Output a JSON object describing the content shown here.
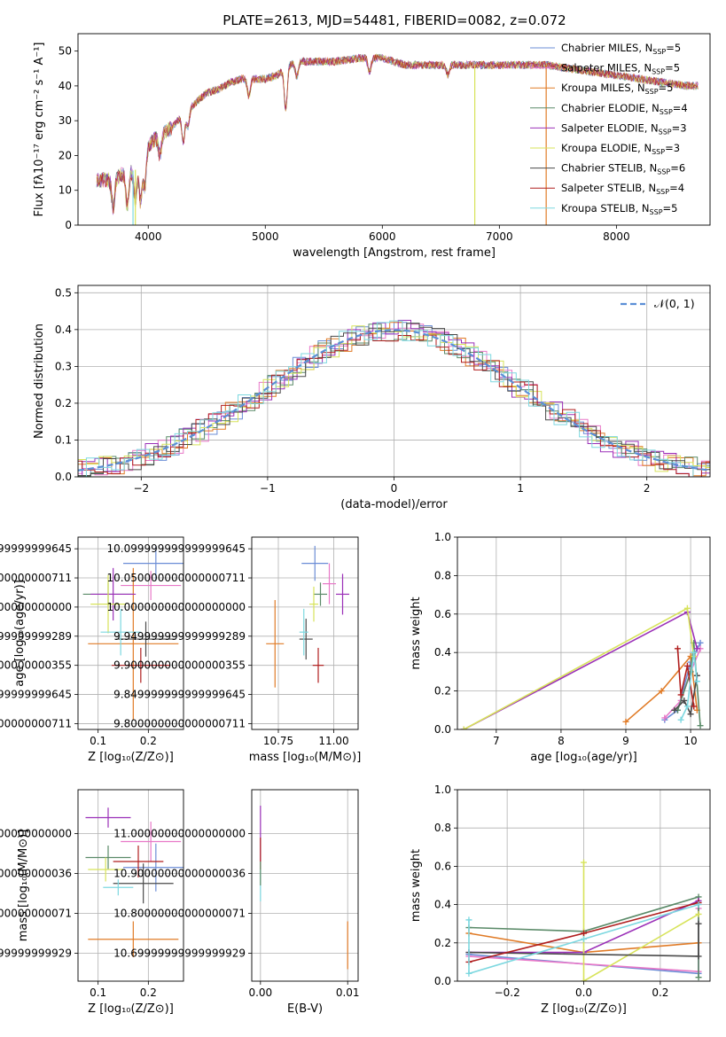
{
  "figure_title": "PLATE=2613, MJD=54481, FIBERID=0082, z=0.072",
  "colors": {
    "c1": "#6b8dd6",
    "c2": "#e878c8",
    "c3": "#e07b27",
    "c4": "#5a8a68",
    "c5": "#9b30b8",
    "c6": "#d7e35a",
    "c7": "#4a4a4a",
    "c8": "#b01e1e",
    "c9": "#7dd8e0"
  },
  "legend_series": [
    {
      "pre": "Chabrier MILES, N",
      "sub": "SSP",
      "post": "=5",
      "color": "#6b8dd6"
    },
    {
      "pre": "Salpeter MILES, N",
      "sub": "SSP",
      "post": "=5",
      "color": "#e878c8"
    },
    {
      "pre": "Kroupa MILES, N",
      "sub": "SSP",
      "post": "=5",
      "color": "#e07b27"
    },
    {
      "pre": "Chabrier ELODIE, N",
      "sub": "SSP",
      "post": "=4",
      "color": "#5a8a68"
    },
    {
      "pre": "Salpeter ELODIE, N",
      "sub": "SSP",
      "post": "=3",
      "color": "#9b30b8"
    },
    {
      "pre": "Kroupa ELODIE, N",
      "sub": "SSP",
      "post": "=3",
      "color": "#d7e35a"
    },
    {
      "pre": "Chabrier STELIB, N",
      "sub": "SSP",
      "post": "=6",
      "color": "#4a4a4a"
    },
    {
      "pre": "Salpeter STELIB, N",
      "sub": "SSP",
      "post": "=4",
      "color": "#b01e1e"
    },
    {
      "pre": "Kroupa STELIB, N",
      "sub": "SSP",
      "post": "=5",
      "color": "#7dd8e0"
    }
  ],
  "chart_data": [
    {
      "id": "spectrum",
      "type": "line",
      "xlabel": "wavelength [Angstrom, rest frame]",
      "ylabel": "Flux [fλ10⁻¹⁷ erg cm⁻² s⁻¹ A⁻¹]",
      "xlim": [
        3400,
        8800
      ],
      "ylim": [
        0,
        55
      ],
      "xticks": [
        4000,
        5000,
        6000,
        7000,
        8000
      ],
      "yticks": [
        0,
        10,
        20,
        30,
        40,
        50
      ],
      "grid": false,
      "legend": "top-right",
      "continuum": [
        [
          3560,
          13
        ],
        [
          3700,
          13
        ],
        [
          3800,
          15
        ],
        [
          3900,
          16
        ],
        [
          3950,
          20
        ],
        [
          4000,
          23
        ],
        [
          4100,
          26
        ],
        [
          4200,
          28
        ],
        [
          4300,
          32
        ],
        [
          4400,
          35
        ],
        [
          4500,
          38
        ],
        [
          4600,
          39
        ],
        [
          4700,
          41
        ],
        [
          4800,
          42
        ],
        [
          4900,
          42
        ],
        [
          5000,
          42
        ],
        [
          5100,
          43
        ],
        [
          5200,
          46
        ],
        [
          5300,
          47
        ],
        [
          5400,
          47
        ],
        [
          5600,
          47
        ],
        [
          5800,
          48
        ],
        [
          5900,
          48
        ],
        [
          6000,
          48
        ],
        [
          6200,
          46
        ],
        [
          6400,
          46
        ],
        [
          6600,
          46
        ],
        [
          6800,
          46
        ],
        [
          7000,
          46
        ],
        [
          7200,
          46
        ],
        [
          7400,
          46
        ],
        [
          7600,
          45
        ],
        [
          7800,
          44
        ],
        [
          8000,
          43
        ],
        [
          8200,
          42
        ],
        [
          8400,
          41
        ],
        [
          8600,
          40
        ],
        [
          8700,
          40
        ]
      ],
      "absorption": [
        [
          3700,
          8
        ],
        [
          3820,
          10
        ],
        [
          3890,
          9
        ],
        [
          3935,
          12
        ],
        [
          3970,
          10
        ],
        [
          4100,
          6
        ],
        [
          4300,
          8
        ],
        [
          4340,
          5
        ],
        [
          4860,
          5
        ],
        [
          5175,
          12
        ],
        [
          5270,
          4
        ],
        [
          5890,
          4
        ],
        [
          6560,
          3
        ]
      ],
      "dips": [
        [
          3870,
          0,
          "#7dd8e0"
        ],
        [
          3890,
          0,
          "#d7e35a"
        ],
        [
          6790,
          0,
          "#d7e35a"
        ],
        [
          7400,
          0,
          "#e07b27"
        ]
      ]
    },
    {
      "id": "residuals",
      "type": "line",
      "xlabel": "(data-model)/error",
      "ylabel": "Normed distribution",
      "xlim": [
        -2.5,
        2.5
      ],
      "ylim": [
        0,
        0.52
      ],
      "xticks": [
        -2,
        -1,
        0,
        1,
        2
      ],
      "yticks": [
        0.0,
        0.1,
        0.2,
        0.3,
        0.4,
        0.5
      ],
      "grid": true,
      "legend": "top-right",
      "gauss_label": "𝒩(0, 1)"
    },
    {
      "id": "age_vs_Z",
      "type": "scatter",
      "xlabel": "Z [log₁₀(Z/Z⊙)]",
      "ylabel": "age  [log₁₀(age/yr)]",
      "xlim": [
        0.06,
        0.27
      ],
      "ylim": [
        9.79,
        10.12
      ],
      "xticks": [
        0.1,
        0.2
      ],
      "yticks": [
        9.8,
        9.85,
        9.9,
        9.95,
        10.0,
        10.05,
        10.1
      ],
      "grid": true,
      "points": [
        {
          "x": 0.215,
          "y": 10.075,
          "xe": 0.065,
          "ye": 0.03,
          "c": "c1"
        },
        {
          "x": 0.205,
          "y": 10.037,
          "xe": 0.06,
          "ye": 0.025,
          "c": "c2"
        },
        {
          "x": 0.17,
          "y": 9.937,
          "xe": 0.09,
          "ye": 0.13,
          "c": "c3"
        },
        {
          "x": 0.12,
          "y": 10.022,
          "xe": 0.05,
          "ye": 0.02,
          "c": "c4"
        },
        {
          "x": 0.13,
          "y": 10.022,
          "xe": 0.045,
          "ye": 0.045,
          "c": "c5"
        },
        {
          "x": 0.12,
          "y": 10.005,
          "xe": 0.035,
          "ye": 0.05,
          "c": "c6"
        },
        {
          "x": 0.195,
          "y": 9.945,
          "xe": 0.06,
          "ye": 0.03,
          "c": "c7"
        },
        {
          "x": 0.185,
          "y": 9.9,
          "xe": 0.058,
          "ye": 0.03,
          "c": "c8"
        },
        {
          "x": 0.145,
          "y": 9.957,
          "xe": 0.04,
          "ye": 0.04,
          "c": "c9"
        }
      ]
    },
    {
      "id": "age_vs_mass",
      "type": "scatter",
      "xlabel": "mass [log₁₀(M/M⊙)]",
      "ylabel": "",
      "xlim": [
        10.63,
        11.11
      ],
      "ylim": [
        9.79,
        10.12
      ],
      "xticks": [
        10.75,
        11.0
      ],
      "yticks": [
        9.8,
        9.85,
        9.9,
        9.95,
        10.0,
        10.05,
        10.1
      ],
      "grid": true,
      "points": [
        {
          "x": 10.915,
          "y": 10.075,
          "xe": 0.06,
          "ye": 0.03,
          "c": "c1"
        },
        {
          "x": 10.98,
          "y": 10.04,
          "xe": 0.03,
          "ye": 0.035,
          "c": "c2"
        },
        {
          "x": 10.735,
          "y": 9.937,
          "xe": 0.04,
          "ye": 0.075,
          "c": "c3"
        },
        {
          "x": 10.94,
          "y": 10.022,
          "xe": 0.03,
          "ye": 0.02,
          "c": "c4"
        },
        {
          "x": 11.04,
          "y": 10.022,
          "xe": 0.03,
          "ye": 0.035,
          "c": "c5"
        },
        {
          "x": 10.91,
          "y": 10.005,
          "xe": 0.02,
          "ye": 0.03,
          "c": "c6"
        },
        {
          "x": 10.875,
          "y": 9.945,
          "xe": 0.03,
          "ye": 0.035,
          "c": "c7"
        },
        {
          "x": 10.93,
          "y": 9.9,
          "xe": 0.025,
          "ye": 0.03,
          "c": "c8"
        },
        {
          "x": 10.865,
          "y": 9.957,
          "xe": 0.02,
          "ye": 0.04,
          "c": "c9"
        }
      ]
    },
    {
      "id": "massweight_vs_age",
      "type": "line",
      "xlabel": "age  [log₁₀(age/yr)]",
      "ylabel": "mass weight",
      "xlim": [
        6.4,
        10.3
      ],
      "ylim": [
        0,
        1.0
      ],
      "xticks": [
        7,
        8,
        9,
        10
      ],
      "yticks": [
        0.0,
        0.2,
        0.4,
        0.6,
        0.8,
        1.0
      ],
      "grid": true,
      "series": [
        {
          "c": "c1",
          "pts": [
            [
              9.6,
              0.05
            ],
            [
              9.8,
              0.1
            ],
            [
              10.0,
              0.35
            ],
            [
              10.15,
              0.45
            ]
          ]
        },
        {
          "c": "c2",
          "pts": [
            [
              9.6,
              0.06
            ],
            [
              9.85,
              0.15
            ],
            [
              10.0,
              0.3
            ],
            [
              10.15,
              0.42
            ]
          ]
        },
        {
          "c": "c3",
          "pts": [
            [
              9.0,
              0.04
            ],
            [
              9.55,
              0.2
            ],
            [
              10.0,
              0.38
            ],
            [
              10.1,
              0.1
            ]
          ]
        },
        {
          "c": "c4",
          "pts": [
            [
              9.8,
              0.1
            ],
            [
              10.0,
              0.3
            ],
            [
              10.05,
              0.45
            ],
            [
              10.15,
              0.02
            ]
          ]
        },
        {
          "c": "c5",
          "pts": [
            [
              6.5,
              0.0
            ],
            [
              9.95,
              0.61
            ],
            [
              10.1,
              0.42
            ]
          ]
        },
        {
          "c": "c6",
          "pts": [
            [
              6.5,
              0.0
            ],
            [
              9.95,
              0.63
            ],
            [
              10.05,
              0.38
            ]
          ]
        },
        {
          "c": "c7",
          "pts": [
            [
              9.75,
              0.1
            ],
            [
              9.9,
              0.15
            ],
            [
              10.0,
              0.08
            ],
            [
              10.1,
              0.28
            ]
          ]
        },
        {
          "c": "c8",
          "pts": [
            [
              9.8,
              0.42
            ],
            [
              9.85,
              0.18
            ],
            [
              9.95,
              0.33
            ],
            [
              10.05,
              0.12
            ]
          ]
        },
        {
          "c": "c9",
          "pts": [
            [
              9.85,
              0.05
            ],
            [
              9.95,
              0.12
            ],
            [
              10.05,
              0.4
            ],
            [
              10.1,
              0.25
            ]
          ]
        }
      ]
    },
    {
      "id": "mass_vs_Z",
      "type": "scatter",
      "xlabel": "Z [log₁₀(Z/Z⊙)]",
      "ylabel": "mass [log₁₀(M/M⊙)]",
      "xlim": [
        0.06,
        0.27
      ],
      "ylim": [
        10.63,
        11.11
      ],
      "xticks": [
        0.1,
        0.2
      ],
      "yticks": [
        10.7,
        10.8,
        10.9,
        11.0
      ],
      "grid": true,
      "points": [
        {
          "x": 0.215,
          "y": 10.915,
          "xe": 0.065,
          "ye": 0.06,
          "c": "c1"
        },
        {
          "x": 0.205,
          "y": 10.98,
          "xe": 0.06,
          "ye": 0.05,
          "c": "c2"
        },
        {
          "x": 0.17,
          "y": 10.735,
          "xe": 0.09,
          "ye": 0.045,
          "c": "c3"
        },
        {
          "x": 0.12,
          "y": 10.94,
          "xe": 0.045,
          "ye": 0.03,
          "c": "c4"
        },
        {
          "x": 0.12,
          "y": 11.04,
          "xe": 0.045,
          "ye": 0.025,
          "c": "c5"
        },
        {
          "x": 0.115,
          "y": 10.91,
          "xe": 0.035,
          "ye": 0.03,
          "c": "c6"
        },
        {
          "x": 0.19,
          "y": 10.875,
          "xe": 0.06,
          "ye": 0.05,
          "c": "c7"
        },
        {
          "x": 0.18,
          "y": 10.93,
          "xe": 0.05,
          "ye": 0.04,
          "c": "c8"
        },
        {
          "x": 0.14,
          "y": 10.865,
          "xe": 0.03,
          "ye": 0.02,
          "c": "c9"
        }
      ]
    },
    {
      "id": "mass_vs_ebv",
      "type": "scatter",
      "xlabel": "E(B-V)",
      "ylabel": "",
      "xlim": [
        -0.001,
        0.0112
      ],
      "ylim": [
        10.63,
        11.11
      ],
      "xticks": [
        0.0,
        0.01
      ],
      "xtick_labels": [
        "0.00",
        "0.01"
      ],
      "yticks": [
        10.7,
        10.8,
        10.9,
        11.0
      ],
      "grid": true,
      "points": [
        {
          "x": 0.0,
          "y": 11.0,
          "xe": 0,
          "ye": 0.07,
          "c": "c5"
        },
        {
          "x": 0.0,
          "y": 10.95,
          "xe": 0,
          "ye": 0.04,
          "c": "c8"
        },
        {
          "x": 0.0,
          "y": 10.87,
          "xe": 0,
          "ye": 0.04,
          "c": "c9"
        },
        {
          "x": 0.0,
          "y": 10.9,
          "xe": 0,
          "ye": 0.03,
          "c": "c4"
        },
        {
          "x": 0.01,
          "y": 10.72,
          "xe": 0,
          "ye": 0.06,
          "c": "c3"
        }
      ]
    },
    {
      "id": "massweight_vs_Z",
      "type": "line",
      "xlabel": "Z [log₁₀(Z/Z⊙)]",
      "ylabel": "mass weight",
      "xlim": [
        -0.33,
        0.33
      ],
      "ylim": [
        0,
        1.0
      ],
      "xticks": [
        -0.2,
        0.0,
        0.2
      ],
      "yticks": [
        0.0,
        0.2,
        0.4,
        0.6,
        0.8,
        1.0
      ],
      "grid": true,
      "series": [
        {
          "c": "c1",
          "pts": [
            [
              -0.3,
              0.14
            ],
            [
              0.3,
              0.04
            ],
            [
              0.3,
              0.41
            ]
          ]
        },
        {
          "c": "c2",
          "pts": [
            [
              -0.3,
              0.13
            ],
            [
              0.3,
              0.05
            ],
            [
              0.3,
              0.38
            ]
          ]
        },
        {
          "c": "c3",
          "pts": [
            [
              -0.3,
              0.25
            ],
            [
              0.0,
              0.15
            ],
            [
              0.3,
              0.2
            ]
          ]
        },
        {
          "c": "c4",
          "pts": [
            [
              -0.3,
              0.28
            ],
            [
              0.0,
              0.26
            ],
            [
              0.3,
              0.44
            ],
            [
              0.3,
              0.02
            ]
          ]
        },
        {
          "c": "c5",
          "pts": [
            [
              -0.3,
              0.15
            ],
            [
              0.0,
              0.15
            ],
            [
              0.3,
              0.42
            ]
          ]
        },
        {
          "c": "c6",
          "pts": [
            [
              0.0,
              0.62
            ],
            [
              0.0,
              0.0
            ],
            [
              0.3,
              0.35
            ]
          ]
        },
        {
          "c": "c7",
          "pts": [
            [
              -0.3,
              0.15
            ],
            [
              0.3,
              0.13
            ],
            [
              0.3,
              0.3
            ]
          ]
        },
        {
          "c": "c8",
          "pts": [
            [
              -0.3,
              0.1
            ],
            [
              0.0,
              0.25
            ],
            [
              0.3,
              0.41
            ]
          ]
        },
        {
          "c": "c9",
          "pts": [
            [
              -0.3,
              0.32
            ],
            [
              -0.3,
              0.04
            ],
            [
              0.0,
              0.22
            ],
            [
              0.3,
              0.4
            ]
          ]
        }
      ]
    }
  ]
}
